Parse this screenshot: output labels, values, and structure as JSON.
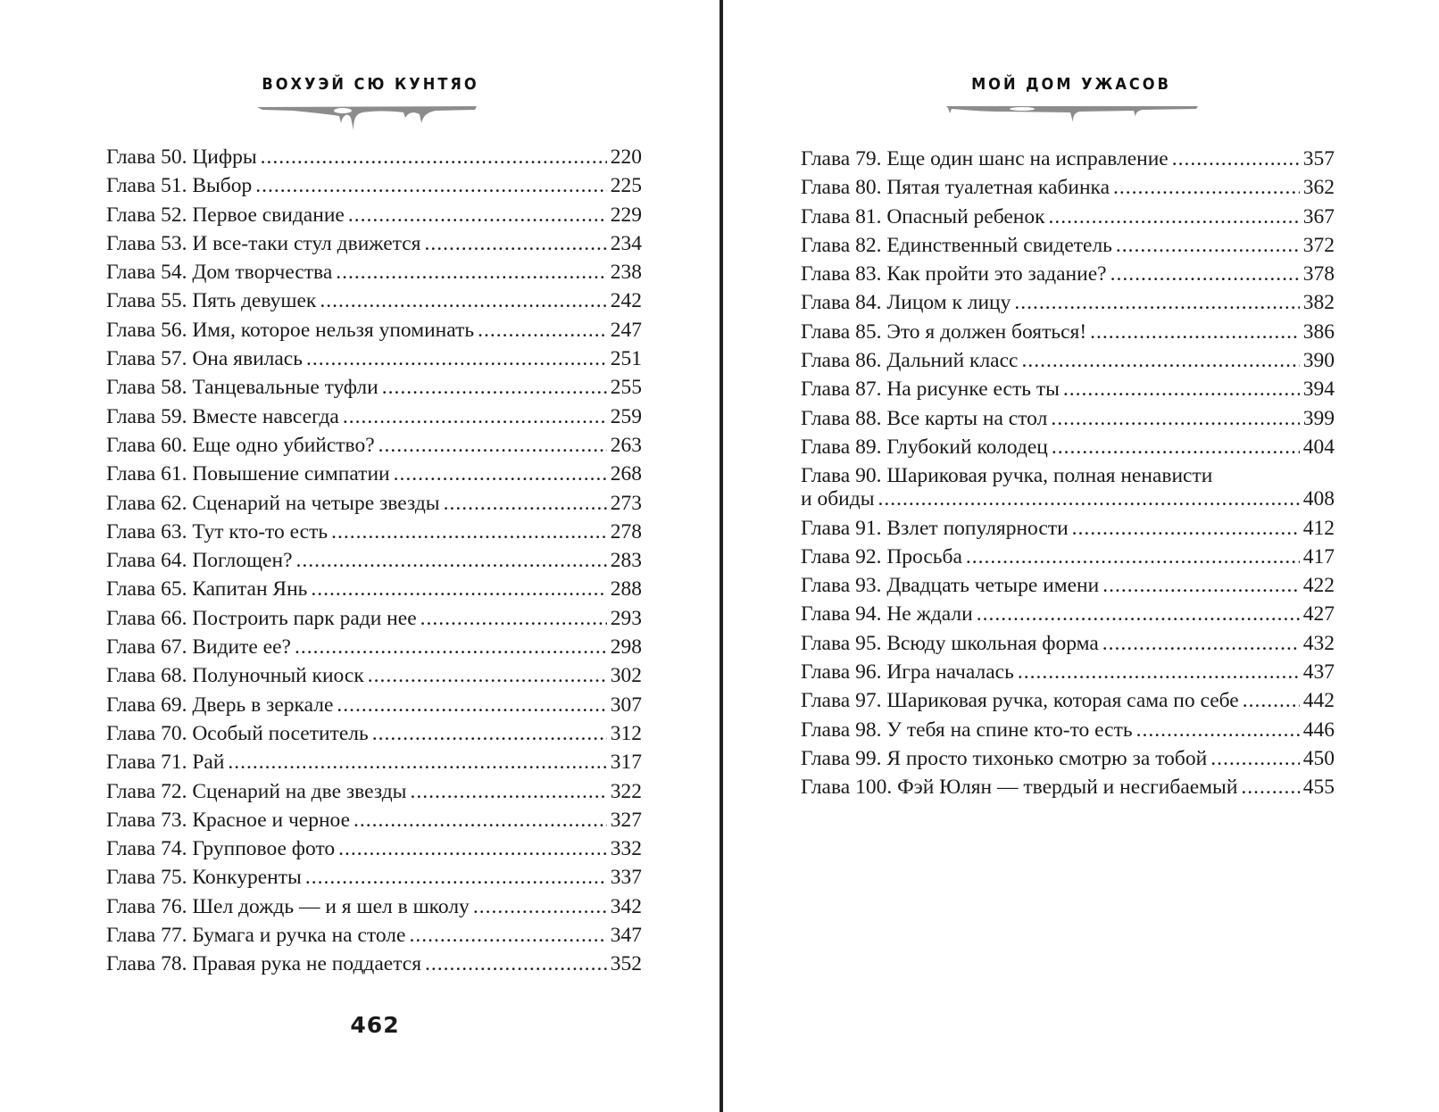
{
  "left_page": {
    "running_head": "ВОХУЭЙ СЮ КУНТЯО",
    "entries": [
      {
        "title": "Глава 50. Цифры",
        "page": "220"
      },
      {
        "title": "Глава 51. Выбор",
        "page": "225"
      },
      {
        "title": "Глава 52. Первое свидание",
        "page": "229"
      },
      {
        "title": "Глава 53. И все-таки стул движется",
        "page": "234"
      },
      {
        "title": "Глава 54. Дом творчества",
        "page": "238"
      },
      {
        "title": "Глава 55. Пять девушек",
        "page": "242"
      },
      {
        "title": "Глава 56. Имя, которое нельзя упоминать",
        "page": "247"
      },
      {
        "title": "Глава 57. Она явилась",
        "page": "251"
      },
      {
        "title": "Глава 58. Танцевальные туфли",
        "page": "255"
      },
      {
        "title": "Глава 59. Вместе навсегда",
        "page": "259"
      },
      {
        "title": "Глава 60. Еще одно убийство?",
        "page": "263"
      },
      {
        "title": "Глава 61. Повышение симпатии",
        "page": "268"
      },
      {
        "title": "Глава 62. Сценарий на четыре звезды",
        "page": "273"
      },
      {
        "title": "Глава 63. Тут кто-то есть",
        "page": "278"
      },
      {
        "title": "Глава 64. Поглощен?",
        "page": "283"
      },
      {
        "title": "Глава 65. Капитан Янь",
        "page": "288"
      },
      {
        "title": "Глава 66. Построить парк ради нее",
        "page": "293"
      },
      {
        "title": "Глава 67. Видите ее?",
        "page": "298"
      },
      {
        "title": "Глава 68. Полуночный киоск",
        "page": "302"
      },
      {
        "title": "Глава 69. Дверь в зеркале",
        "page": "307"
      },
      {
        "title": "Глава 70. Особый посетитель",
        "page": "312"
      },
      {
        "title": "Глава 71. Рай",
        "page": "317"
      },
      {
        "title": "Глава 72. Сценарий на две звезды",
        "page": "322"
      },
      {
        "title": "Глава 73. Красное и черное",
        "page": "327"
      },
      {
        "title": "Глава 74. Групповое фото",
        "page": "332"
      },
      {
        "title": "Глава 75. Конкуренты",
        "page": "337"
      },
      {
        "title": "Глава 76. Шел дождь — и я шел в школу",
        "page": "342"
      },
      {
        "title": "Глава 77. Бумага и ручка на столе",
        "page": "347"
      },
      {
        "title": "Глава 78. Правая рука не поддается",
        "page": "352"
      }
    ],
    "folio": "462"
  },
  "right_page": {
    "running_head": "МОЙ ДОМ УЖАСОВ",
    "entries_before": [
      {
        "title": "Глава 79. Еще один шанс на исправление",
        "page": "357"
      },
      {
        "title": "Глава 80. Пятая туалетная кабинка",
        "page": "362"
      },
      {
        "title": "Глава 81. Опасный ребенок",
        "page": "367"
      },
      {
        "title": "Глава 82. Единственный свидетель",
        "page": "372"
      },
      {
        "title": "Глава 83. Как пройти это задание?",
        "page": "378"
      },
      {
        "title": "Глава 84. Лицом к лицу",
        "page": "382"
      },
      {
        "title": "Глава 85. Это я должен бояться!",
        "page": "386"
      },
      {
        "title": "Глава 86. Дальний класс",
        "page": "390"
      },
      {
        "title": "Глава 87. На рисунке есть ты",
        "page": "394"
      },
      {
        "title": "Глава 88. Все карты на стол",
        "page": "399"
      },
      {
        "title": "Глава 89. Глубокий колодец",
        "page": "404"
      }
    ],
    "wrapped_entry": {
      "line1": "Глава 90. Шариковая ручка, полная ненависти",
      "line2": "и обиды",
      "page": "408"
    },
    "entries_after": [
      {
        "title": "Глава 91. Взлет популярности",
        "page": "412"
      },
      {
        "title": "Глава 92. Просьба",
        "page": "417"
      },
      {
        "title": "Глава 93. Двадцать четыре имени",
        "page": "422"
      },
      {
        "title": "Глава 94. Не ждали",
        "page": "427"
      },
      {
        "title": "Глава 95. Всюду школьная форма",
        "page": "432"
      },
      {
        "title": "Глава 96. Игра началась",
        "page": "437"
      },
      {
        "title": "Глава 97. Шариковая ручка, которая сама по себе",
        "page": "442"
      },
      {
        "title": "Глава 98. У тебя на спине кто-то есть",
        "page": "446"
      },
      {
        "title": "Глава 99. Я просто тихонько смотрю за тобой",
        "page": "450"
      },
      {
        "title": "Глава 100. Фэй Юлян — твердый и несгибаемый",
        "page": "455"
      }
    ]
  },
  "colors": {
    "drip": "#8c8c8c",
    "divider": "#222222",
    "text": "#1a1a1a"
  }
}
